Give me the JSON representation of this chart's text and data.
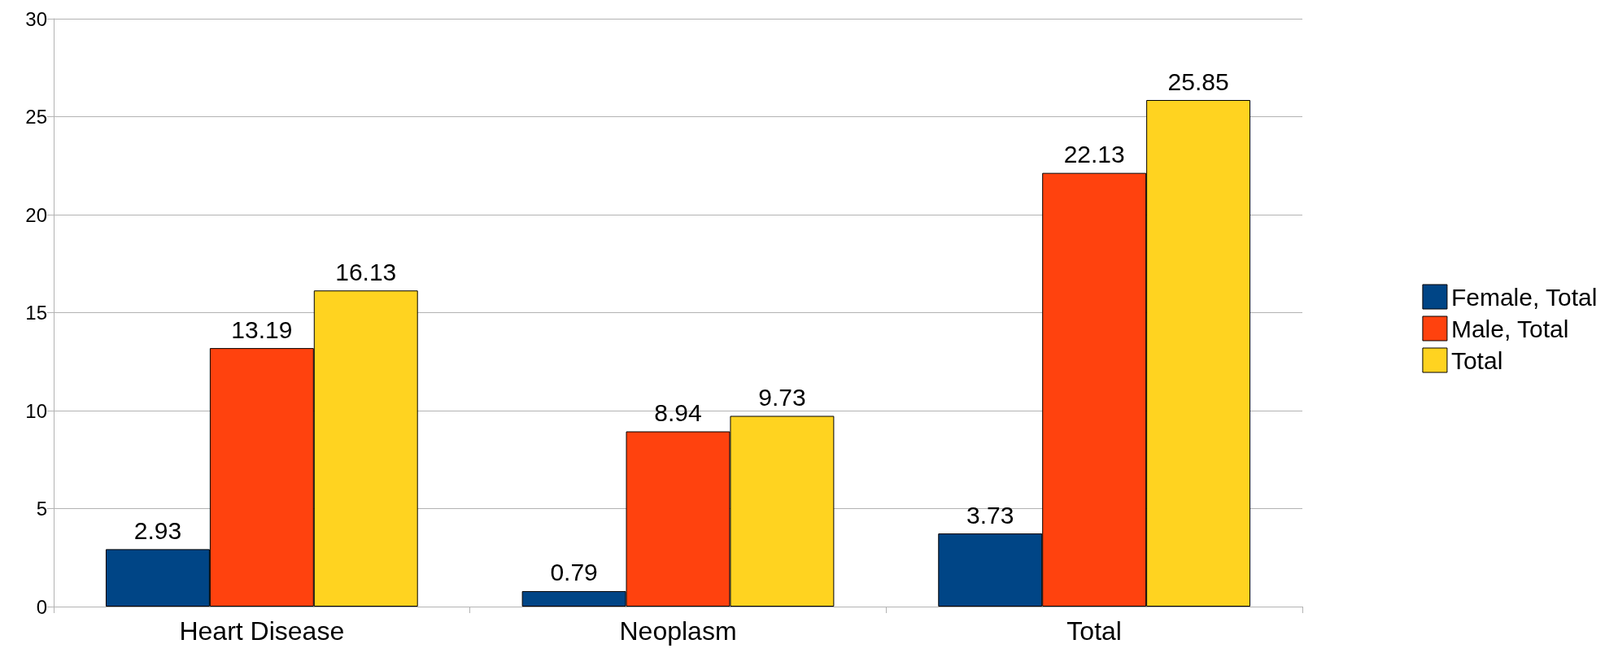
{
  "chart_data": {
    "type": "bar",
    "categories": [
      "Heart Disease",
      "Neoplasm",
      "Total"
    ],
    "series": [
      {
        "name": "Female, Total",
        "color": "#004586",
        "values": [
          2.93,
          0.79,
          3.73
        ]
      },
      {
        "name": "Male, Total",
        "color": "#ff420e",
        "values": [
          13.19,
          8.94,
          22.13
        ]
      },
      {
        "name": "Total",
        "color": "#ffd320",
        "values": [
          16.13,
          9.73,
          25.85
        ]
      }
    ],
    "ylim": [
      0,
      30
    ],
    "yticks": [
      0,
      5,
      10,
      15,
      20,
      25,
      30
    ],
    "grid": "y",
    "legend": "right",
    "data_labels": true
  }
}
